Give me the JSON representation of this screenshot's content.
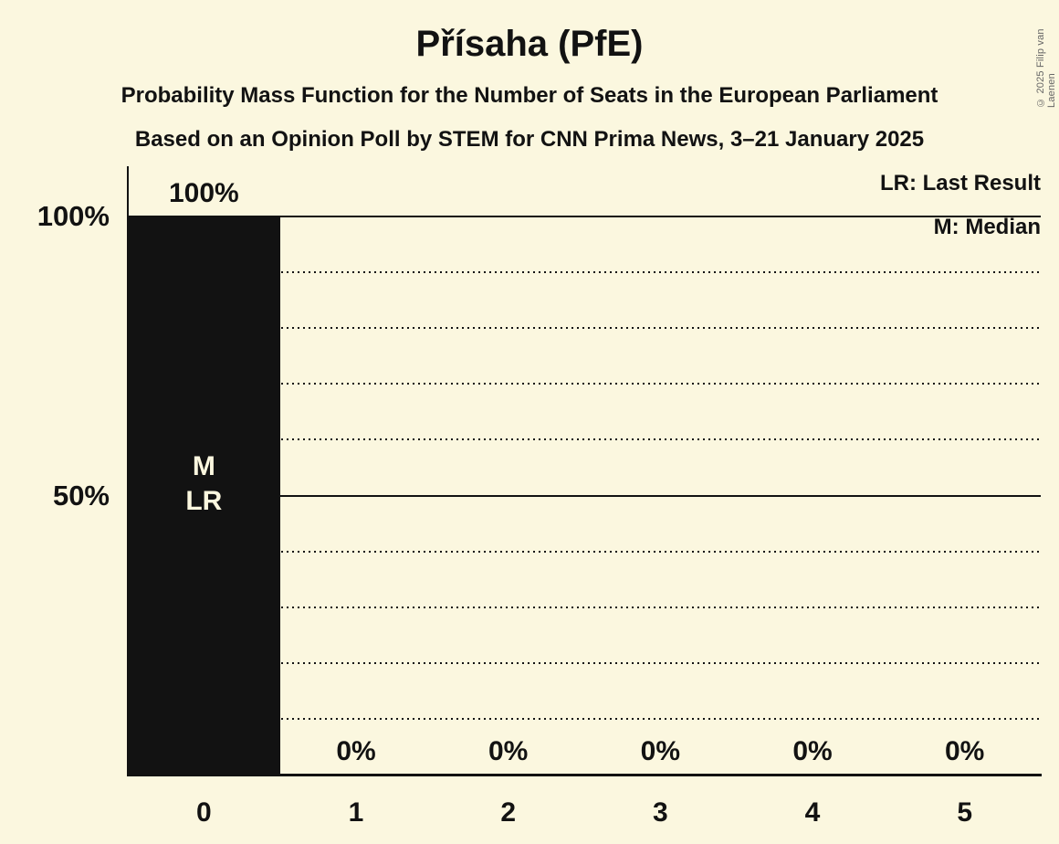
{
  "title": "Přísaha (PfE)",
  "subtitle1": "Probability Mass Function for the Number of Seats in the European Parliament",
  "subtitle2": "Based on an Opinion Poll by STEM for CNN Prima News, 3–21 January 2025",
  "copyright": "© 2025 Filip van Laenen",
  "legend": {
    "lr": "LR: Last Result",
    "m": "M: Median"
  },
  "y_axis": {
    "labels": [
      {
        "text": "100%",
        "pct": 100
      },
      {
        "text": "50%",
        "pct": 50
      }
    ]
  },
  "colors": {
    "background": "#FBF7DF",
    "ink": "#121212",
    "bar": "#121212",
    "annotation_text": "#FBF7DF",
    "copyright_text": "#666666"
  },
  "chart_data": {
    "type": "bar",
    "title": "Přísaha (PfE)",
    "categories": [
      "0",
      "1",
      "2",
      "3",
      "4",
      "5"
    ],
    "values": [
      100,
      0,
      0,
      0,
      0,
      0
    ],
    "value_labels": [
      "100%",
      "0%",
      "0%",
      "0%",
      "0%",
      "0%"
    ],
    "xlabel": "",
    "ylabel": "",
    "ylim": [
      0,
      100
    ],
    "grid": "horizontal only",
    "gridlines_solid_pct": [
      100,
      50
    ],
    "gridlines_dotted_pct": [
      90,
      80,
      70,
      60,
      40,
      30,
      20,
      10
    ],
    "legend_position": "top-right",
    "bar_annotations": [
      {
        "category": "0",
        "lines": [
          "M",
          "LR"
        ]
      }
    ]
  }
}
